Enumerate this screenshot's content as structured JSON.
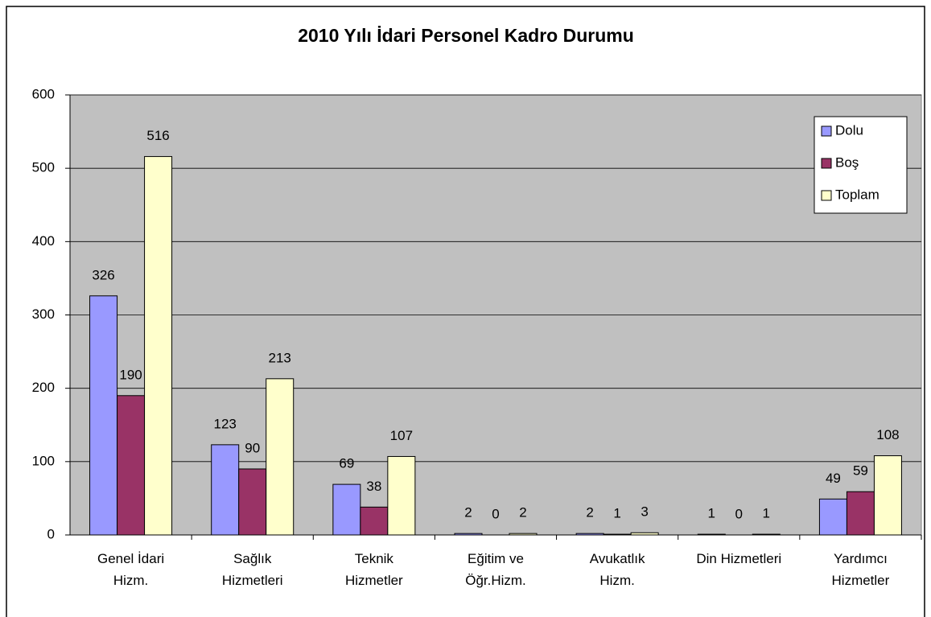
{
  "chart_data": {
    "type": "bar",
    "title": "2010 Yılı İdari Personel Kadro Durumu",
    "categories": [
      "Genel İdari\nHizm.",
      "Sağlık\nHizmetleri",
      "Teknik\nHizmetler",
      "Eğitim ve\nÖğr.Hizm.",
      "Avukatlık\nHizm.",
      "Din Hizmetleri",
      "Yardımcı\nHizmetler"
    ],
    "series": [
      {
        "name": "Dolu",
        "color": "#9999ff",
        "values": [
          326,
          123,
          69,
          2,
          2,
          1,
          49
        ]
      },
      {
        "name": "Boş",
        "color": "#993366",
        "values": [
          190,
          90,
          38,
          0,
          1,
          0,
          59
        ]
      },
      {
        "name": "Toplam",
        "color": "#ffffcc",
        "values": [
          516,
          213,
          107,
          2,
          3,
          1,
          108
        ]
      }
    ],
    "ylim": [
      0,
      600
    ],
    "yticks": [
      0,
      100,
      200,
      300,
      400,
      500,
      600
    ],
    "grid": true,
    "legend": "upper right",
    "background": "#c0c0c0"
  }
}
